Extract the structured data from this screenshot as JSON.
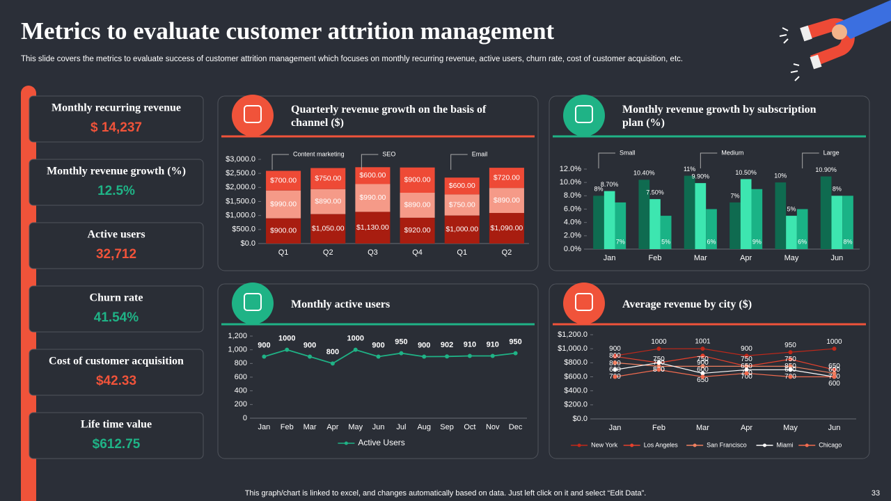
{
  "header": {
    "title": "Metrics to evaluate customer attrition management",
    "subtitle": "This slide covers the metrics to evaluate success of customer attrition management which focuses on monthly recurring revenue, active users, churn rate, cost of customer acquisition, etc."
  },
  "kpis": [
    {
      "label": "Monthly recurring revenue",
      "value": "$ 14,237",
      "color": "#f0533a"
    },
    {
      "label": "Monthly revenue growth (%)",
      "value": "12.5%",
      "color": "#1fb386"
    },
    {
      "label": "Active users",
      "value": "32,712",
      "color": "#f0533a"
    },
    {
      "label": "Churn rate",
      "value": "41.54%",
      "color": "#1fb386"
    },
    {
      "label": "Cost of customer acquisition",
      "value": "$42.33",
      "color": "#f0533a"
    },
    {
      "label": "Life time value",
      "value": "$612.75",
      "color": "#1fb386"
    }
  ],
  "chart_data": [
    {
      "type": "bar",
      "stacked": true,
      "accent": "#f0533a",
      "title": "Quarterly revenue growth on the basis of channel ($)",
      "categories": [
        "Q1",
        "Q2",
        "Q3",
        "Q4",
        "Q1",
        "Q2"
      ],
      "series": [
        {
          "name": "Content marketing",
          "color": "#a81d10",
          "values": [
            900,
            1050,
            1130,
            920,
            1000,
            1090
          ],
          "value_labels": [
            "$900.00",
            "$1,050.00",
            "$1,130.00",
            "$920.00",
            "$1,000.00",
            "$1,090.00"
          ]
        },
        {
          "name": "SEO",
          "color": "#f59a88",
          "values": [
            990,
            890,
            990,
            890,
            750,
            890
          ],
          "value_labels": [
            "$990.00",
            "$890.00",
            "$990.00",
            "$890.00",
            "$750.00",
            "$890.00"
          ]
        },
        {
          "name": "Email",
          "color": "#ee4a36",
          "values": [
            700,
            750,
            600,
            900,
            600,
            720
          ],
          "value_labels": [
            "$700.00",
            "$750.00",
            "$600.00",
            "$900.00",
            "$600.00",
            "$720.00"
          ]
        }
      ],
      "ylim": [
        0,
        3000
      ],
      "yticks": [
        {
          "value": 0,
          "label": "$0.0"
        },
        {
          "value": 500,
          "label": "$500.0"
        },
        {
          "value": 1000,
          "label": "$1,000.0"
        },
        {
          "value": 1500,
          "label": "$1,500.0"
        },
        {
          "value": 2000,
          "label": "$2,000.0"
        },
        {
          "value": 2500,
          "label": "$2,500.0"
        },
        {
          "value": 3000,
          "label": "$3,000.0"
        }
      ]
    },
    {
      "type": "bar",
      "stacked": false,
      "accent": "#1fb386",
      "title": "Monthly revenue growth by subscription plan (%)",
      "categories": [
        "Jan",
        "Feb",
        "Mar",
        "Apr",
        "May",
        "Jun"
      ],
      "series": [
        {
          "name": "Small",
          "color": "#0f6b50",
          "values": [
            8,
            10.4,
            11,
            7,
            10,
            10.9
          ],
          "value_labels": [
            "8%",
            "10.40%",
            "11%",
            "7%",
            "10%",
            "10.90%"
          ]
        },
        {
          "name": "Medium",
          "color": "#3de6b0",
          "values": [
            8.7,
            7.5,
            9.9,
            10.5,
            5,
            8
          ],
          "value_labels": [
            "8.70%",
            "7.50%",
            "9.90%",
            "10.50%",
            "5%",
            "8%"
          ]
        },
        {
          "name": "Large",
          "color": "#1ab386",
          "values": [
            7,
            5,
            6,
            9,
            6,
            8
          ],
          "value_labels": [
            "7%",
            "5%",
            "6%",
            "9%",
            "6%",
            "8%"
          ]
        }
      ],
      "ylim": [
        0,
        12
      ],
      "yticks": [
        {
          "value": 0,
          "label": "0.0%"
        },
        {
          "value": 2,
          "label": "2.0%"
        },
        {
          "value": 4,
          "label": "4.0%"
        },
        {
          "value": 6,
          "label": "6.0%"
        },
        {
          "value": 8,
          "label": "8.0%"
        },
        {
          "value": 10,
          "label": "10.0%"
        },
        {
          "value": 12,
          "label": "12.0%"
        }
      ]
    },
    {
      "type": "line",
      "accent": "#1fb386",
      "title": "Monthly active users",
      "categories": [
        "Jan",
        "Feb",
        "Mar",
        "Apr",
        "May",
        "Jun",
        "Jul",
        "Aug",
        "Sep",
        "Oct",
        "Nov",
        "Dec"
      ],
      "series": [
        {
          "name": "Active Users",
          "color": "#1fb386",
          "values": [
            900,
            1000,
            900,
            800,
            1000,
            900,
            950,
            900,
            902,
            910,
            910,
            950
          ]
        }
      ],
      "ylim": [
        0,
        1200
      ],
      "yticks": [
        0,
        200,
        400,
        600,
        800,
        {
          "value": 1000,
          "label": "1,000"
        },
        {
          "value": 1200,
          "label": "1,200"
        }
      ]
    },
    {
      "type": "line",
      "accent": "#f0533a",
      "title": "Average revenue by city ($)",
      "categories": [
        "Jan",
        "Feb",
        "Mar",
        "Apr",
        "May",
        "Jun"
      ],
      "series": [
        {
          "name": "New York",
          "color": "#c0281a",
          "values": [
            900,
            1000,
            1001,
            900,
            950,
            1000
          ]
        },
        {
          "name": "Los Angeles",
          "color": "#e8412c",
          "values": [
            890,
            800,
            900,
            750,
            850,
            700
          ]
        },
        {
          "name": "San Francisco",
          "color": "#f08060",
          "values": [
            800,
            750,
            750,
            750,
            750,
            650
          ]
        },
        {
          "name": "Miami",
          "color": "#ffffff",
          "values": [
            700,
            800,
            650,
            700,
            700,
            600
          ]
        },
        {
          "name": "Chicago",
          "color": "#f26b4f",
          "values": [
            600,
            700,
            600,
            650,
            600,
            600
          ]
        }
      ],
      "ylim": [
        0,
        1200
      ],
      "yticks": [
        {
          "value": 0,
          "label": "$0.0"
        },
        {
          "value": 200,
          "label": "$200.0"
        },
        {
          "value": 400,
          "label": "$400.0"
        },
        {
          "value": 600,
          "label": "$600.0"
        },
        {
          "value": 800,
          "label": "$800.0"
        },
        {
          "value": 1000,
          "label": "$1,000.0"
        },
        {
          "value": 1200,
          "label": "$1,200.0"
        }
      ]
    }
  ],
  "footer": {
    "note": "This graph/chart is linked to excel, and changes automatically based on data. Just left click on it and select “Edit Data”.",
    "page_number": 33
  }
}
